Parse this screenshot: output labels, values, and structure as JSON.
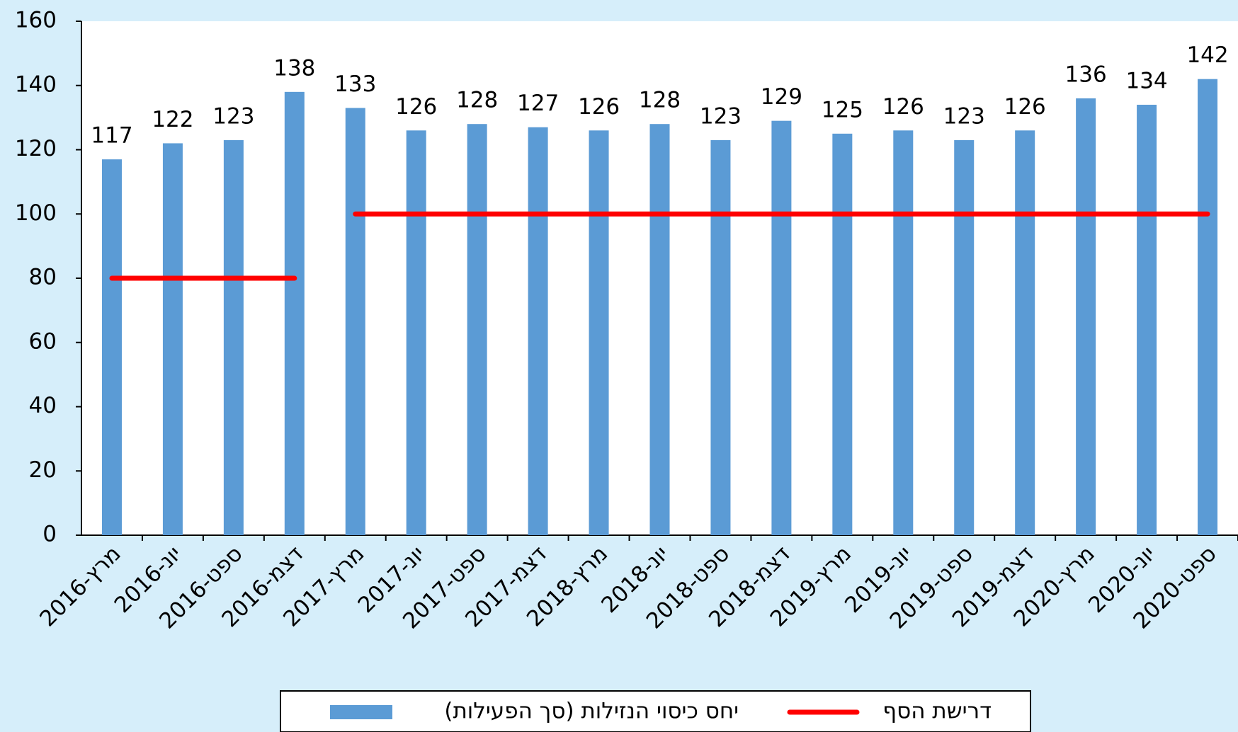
{
  "chart_data": {
    "type": "bar",
    "categories": [
      "מרץ-2016",
      "יונ-2016",
      "ספט-2016",
      "דצמ-2016",
      "מרץ-2017",
      "יונ-2017",
      "ספט-2017",
      "דצמ-2017",
      "מרץ-2018",
      "יונ-2018",
      "ספט-2018",
      "דצמ-2018",
      "מרץ-2019",
      "יונ-2019",
      "ספט-2019",
      "דצמ-2019",
      "מרץ-2020",
      "יונ-2020",
      "ספט-2020"
    ],
    "series": [
      {
        "name": "יחס כיסוי הנזילות (סך הפעילות)",
        "color": "#5b9bd5",
        "type": "bar",
        "values": [
          117,
          122,
          123,
          138,
          133,
          126,
          128,
          127,
          126,
          128,
          123,
          129,
          125,
          126,
          123,
          126,
          136,
          134,
          142
        ]
      },
      {
        "name": "דרישת הסף",
        "color": "#ff0000",
        "type": "line",
        "values": [
          80,
          80,
          80,
          80,
          100,
          100,
          100,
          100,
          100,
          100,
          100,
          100,
          100,
          100,
          100,
          100,
          100,
          100,
          100
        ]
      }
    ],
    "ylim": [
      0,
      160
    ],
    "yticks": [
      0,
      20,
      40,
      60,
      80,
      100,
      120,
      140,
      160
    ],
    "grid": false
  }
}
